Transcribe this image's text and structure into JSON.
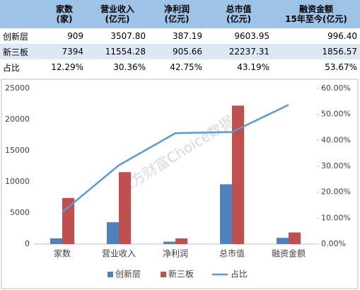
{
  "table": {
    "header": [
      [
        "家数",
        "(家)"
      ],
      [
        "营业收入",
        "(亿元)"
      ],
      [
        "净利润",
        "(亿元)"
      ],
      [
        "总市值",
        "(亿元)"
      ],
      [
        "融资金额",
        "15年至今(亿元)"
      ]
    ],
    "rows": [
      [
        "创新层",
        "909",
        "3507.80",
        "387.19",
        "9603.95",
        "996.40"
      ],
      [
        "新三板",
        "7394",
        "11554.28",
        "905.66",
        "22237.31",
        "1856.57"
      ],
      [
        "占比",
        "12.29%",
        "30.36%",
        "42.75%",
        "43.19%",
        "53.67%"
      ]
    ]
  },
  "chart_data": {
    "type": "bar",
    "watermark": "东方财富Choice数据",
    "categories": [
      "家数",
      "营业收入",
      "净利润",
      "总市值",
      "融资金额"
    ],
    "series": [
      {
        "name": "创新层",
        "color": "#4f81bd",
        "values": [
          909,
          3507.8,
          387.19,
          9603.95,
          996.4
        ]
      },
      {
        "name": "新三板",
        "color": "#c0504d",
        "values": [
          7394,
          11554.28,
          905.66,
          22237.31,
          1856.57
        ]
      },
      {
        "name": "占比",
        "color": "#5b9bd5",
        "type": "line",
        "axis": "y2",
        "values": [
          12.29,
          30.36,
          42.75,
          43.19,
          53.67
        ]
      }
    ],
    "ylim": [
      0,
      25000
    ],
    "yticks": [
      0,
      5000,
      10000,
      15000,
      20000,
      25000
    ],
    "y2lim": [
      0,
      60
    ],
    "y2ticks": [
      {
        "value": 0,
        "label": "0.00%"
      },
      {
        "value": 10,
        "label": "10.00%"
      },
      {
        "value": 20,
        "label": "20.00%"
      },
      {
        "value": 30,
        "label": "30.00%"
      },
      {
        "value": 40,
        "label": "40.00%"
      },
      {
        "value": 50,
        "label": "50.00%"
      },
      {
        "value": 60,
        "label": "60.00%"
      }
    ]
  }
}
